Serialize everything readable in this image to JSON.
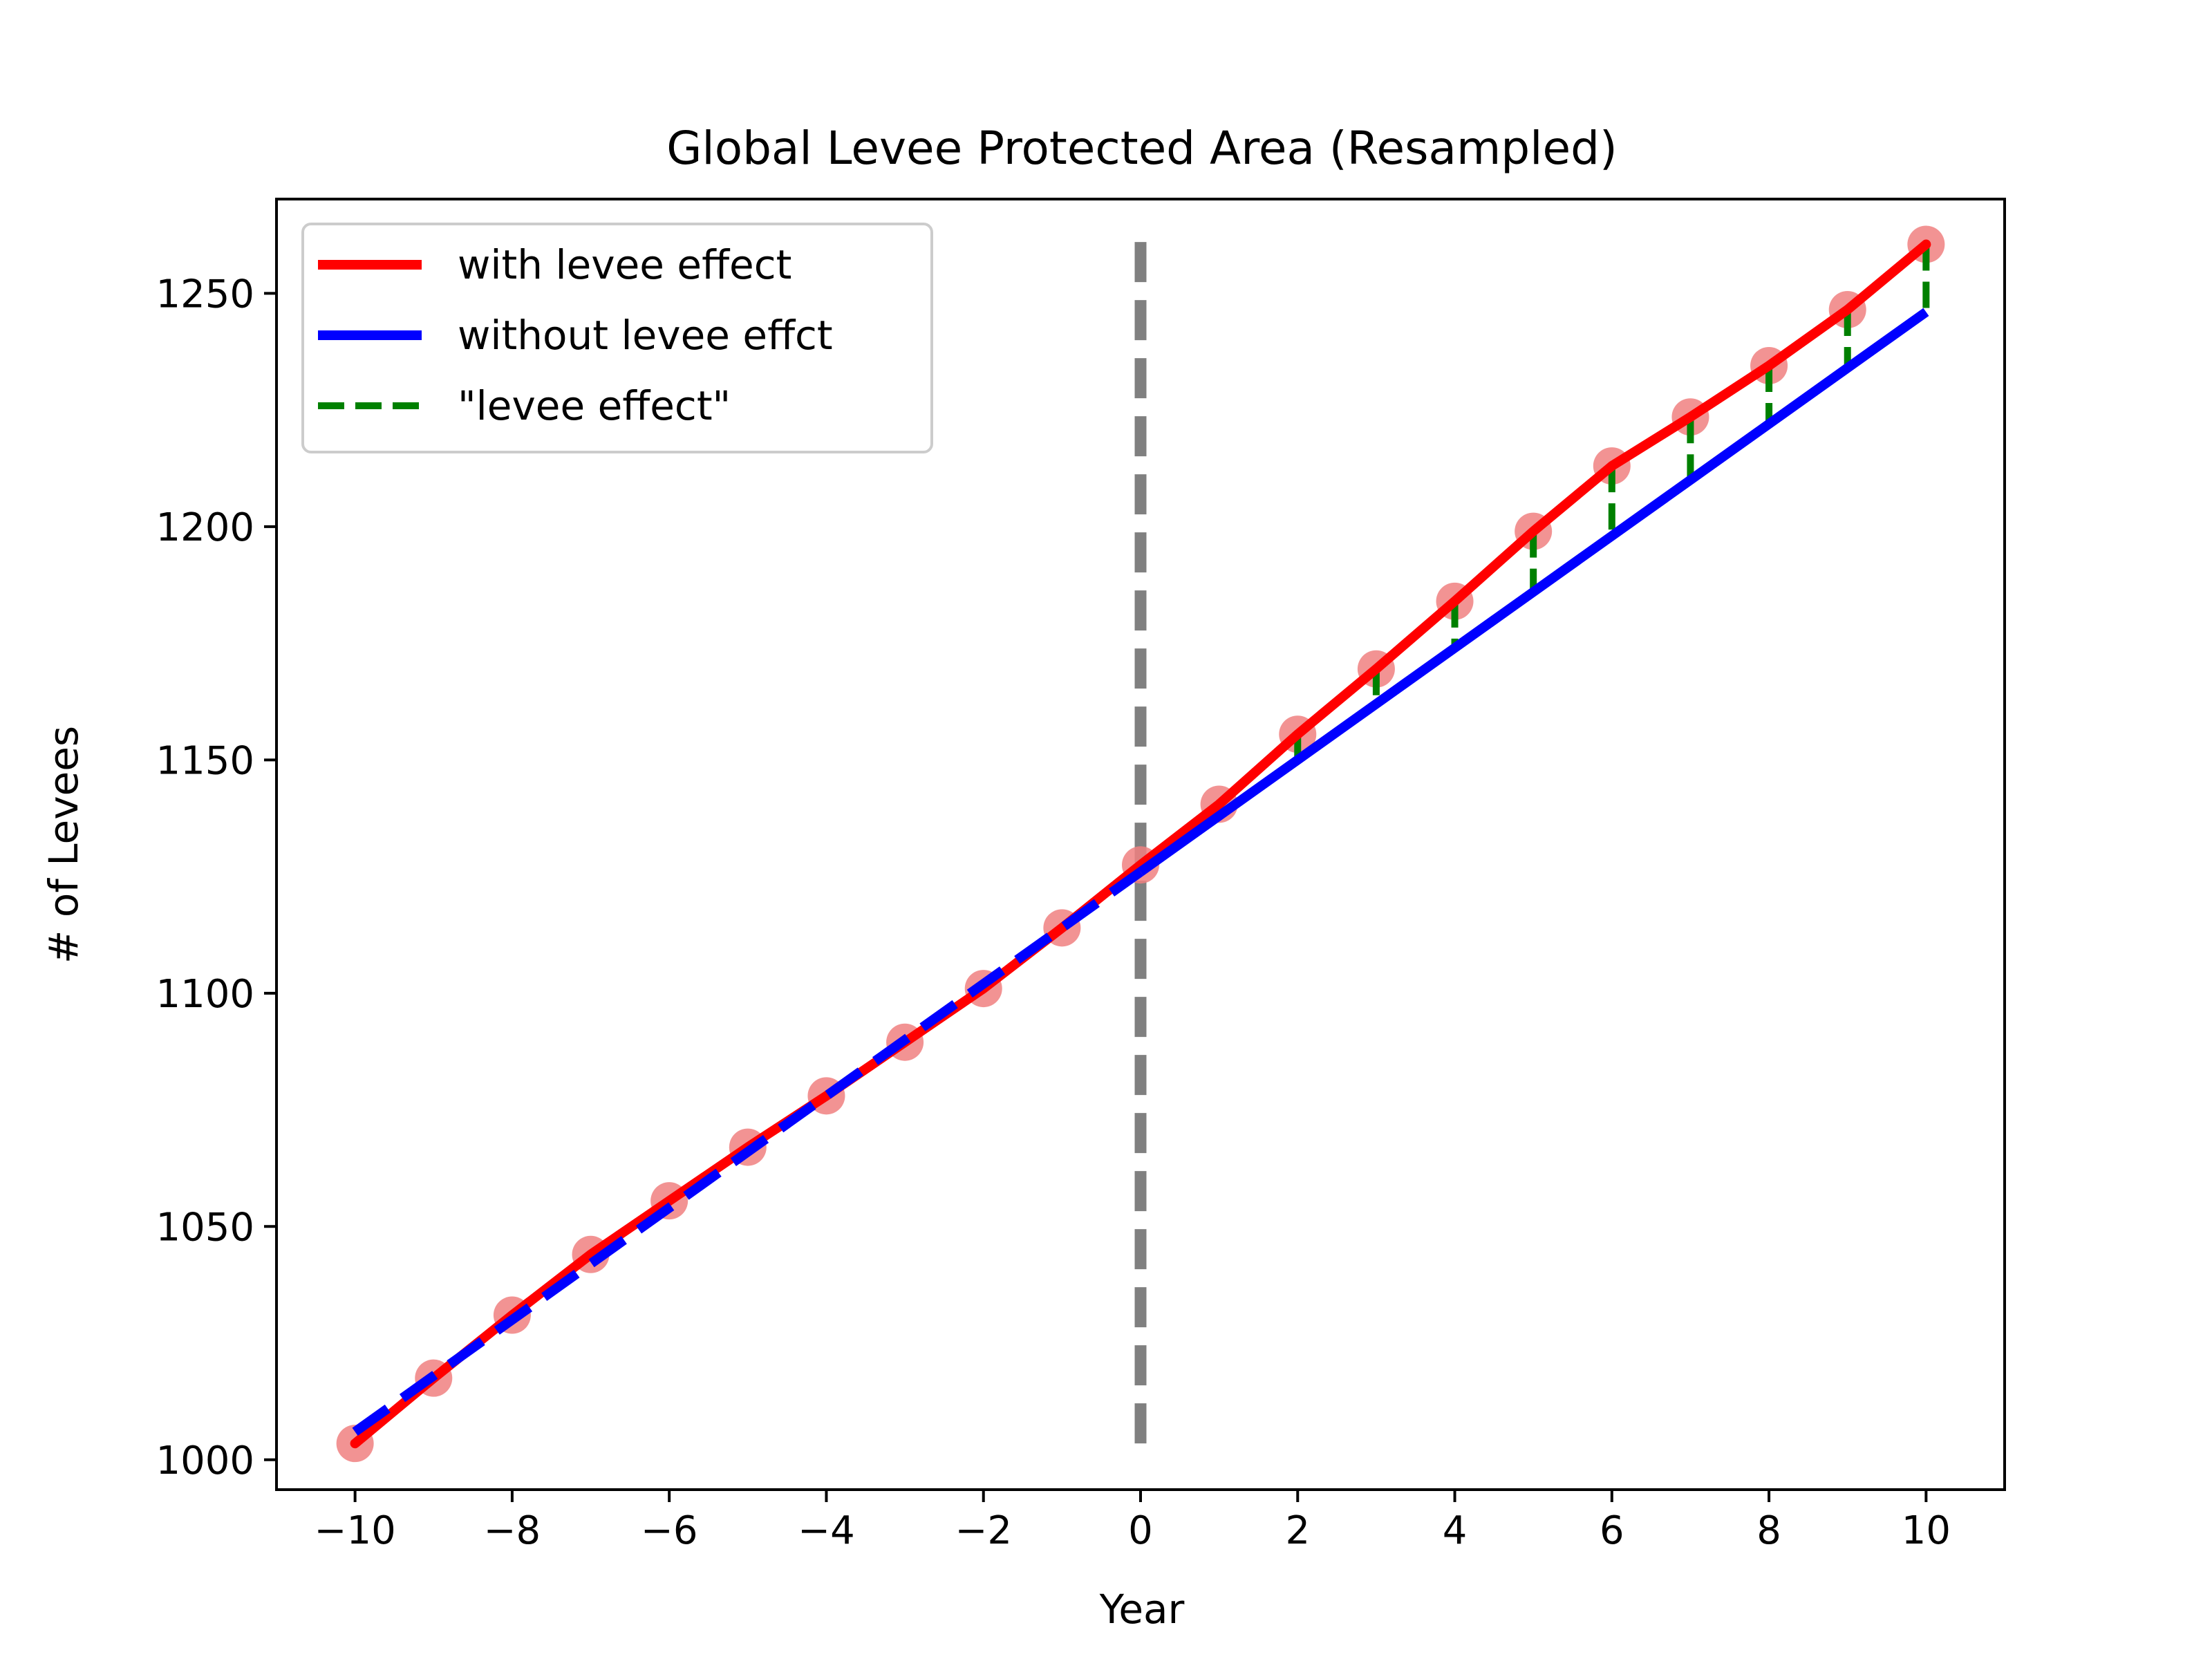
{
  "chart_data": {
    "type": "line",
    "title": "Global Levee Protected Area (Resampled)",
    "xlabel": "Year",
    "ylabel": "# of Levees",
    "xlim": [
      -11,
      11
    ],
    "ylim": [
      993.6,
      1270.2
    ],
    "xticks": [
      -10,
      -8,
      -6,
      -4,
      -2,
      0,
      2,
      4,
      6,
      8,
      10
    ],
    "xtick_labels": [
      "−10",
      "−8",
      "−6",
      "−4",
      "−2",
      "0",
      "2",
      "4",
      "6",
      "8",
      "10"
    ],
    "yticks": [
      1000,
      1050,
      1100,
      1150,
      1200,
      1250
    ],
    "ytick_labels": [
      "1000",
      "1050",
      "1100",
      "1150",
      "1200",
      "1250"
    ],
    "grid": false,
    "legend_position": "upper-left",
    "x": [
      -10,
      -9,
      -8,
      -7,
      -6,
      -5,
      -4,
      -3,
      -2,
      -1,
      0,
      1,
      2,
      3,
      4,
      5,
      6,
      7,
      8,
      9,
      10
    ],
    "series": [
      {
        "name": "with levee effect",
        "style": "solid",
        "color": "#ff0000",
        "values": [
          1003.5,
          1017.5,
          1031,
          1044,
          1055.5,
          1067,
          1078,
          1089.5,
          1101,
          1114,
          1127.5,
          1140.5,
          1155.5,
          1169.5,
          1184,
          1199,
          1213,
          1223.5,
          1234.5,
          1246.5,
          1260.5
        ]
      },
      {
        "name": "without levee effct",
        "style": "solid",
        "color": "#0000ff",
        "values": [
          1006,
          1018,
          1030,
          1042,
          1054,
          1066,
          1078,
          1090,
          1102,
          1114,
          1126,
          1138,
          1150,
          1162,
          1174,
          1186,
          1198,
          1210,
          1222,
          1234,
          1246
        ]
      },
      {
        "name": "\"levee effect\"",
        "style": "dashed",
        "color": "#008000",
        "values": [
          1003.5,
          1017.5,
          1031,
          1044,
          1055.5,
          1067,
          1078,
          1089.5,
          1101,
          1114,
          1127.5,
          1140.5,
          1155.5,
          1169.5,
          1184,
          1199,
          1213,
          1223.5,
          1234.5,
          1246.5,
          1260.5
        ]
      }
    ],
    "pre_period_dashed_blue_x": [
      -10,
      0
    ],
    "intervention_line": {
      "x": 0,
      "y_range": [
        1003,
        1261
      ],
      "color": "#808080"
    },
    "marker_color": "#f08080",
    "colors": {
      "with_levee": "#ff0000",
      "without_levee": "#0000ff",
      "levee_effect": "#008000",
      "intervention": "#808080",
      "markers": "#f08080"
    }
  }
}
